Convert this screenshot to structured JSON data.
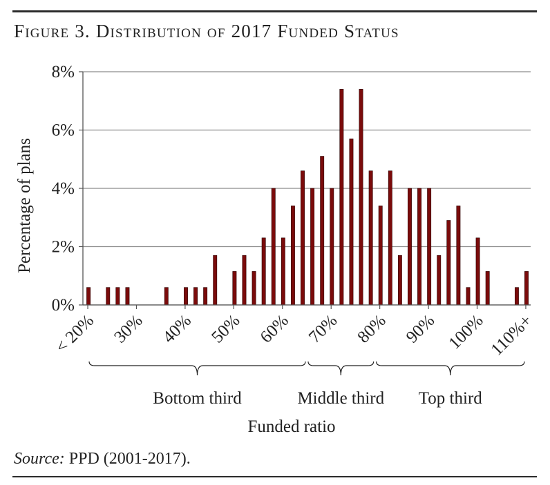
{
  "figure": {
    "title": "Figure 3. Distribution of 2017 Funded Status",
    "source_label": "Source:",
    "source_text": " PPD (2001-2017)."
  },
  "colors": {
    "bar_fill": "#7a0b0b",
    "bar_stroke": "#2a0000",
    "grid": "#8c8c8c"
  },
  "chart_data": {
    "type": "bar",
    "title": "",
    "xlabel": "Funded ratio",
    "ylabel": "Percentage of plans",
    "ylim": [
      0,
      8
    ],
    "y_ticks": [
      "0%",
      "2%",
      "4%",
      "6%",
      "8%"
    ],
    "y_tick_values": [
      0,
      2,
      4,
      6,
      8
    ],
    "grid": "horizontal",
    "x_tick_labels": [
      "< 20%",
      "30%",
      "40%",
      "50%",
      "60%",
      "70%",
      "80%",
      "90%",
      "100%",
      "110%+"
    ],
    "x_tick_values": [
      20,
      30,
      40,
      50,
      60,
      70,
      80,
      90,
      100,
      110
    ],
    "bins": [
      20,
      22,
      24,
      26,
      28,
      30,
      32,
      34,
      36,
      38,
      40,
      42,
      44,
      46,
      48,
      50,
      52,
      54,
      56,
      58,
      60,
      62,
      64,
      66,
      68,
      70,
      72,
      74,
      76,
      78,
      80,
      82,
      84,
      86,
      88,
      90,
      92,
      94,
      96,
      98,
      100,
      102,
      104,
      106,
      108,
      110
    ],
    "values": [
      0.6,
      0,
      0.6,
      0.6,
      0.6,
      0,
      0,
      0,
      0.6,
      0,
      0.6,
      0.6,
      0.6,
      1.7,
      0,
      1.15,
      1.7,
      1.15,
      2.3,
      4.0,
      2.3,
      3.4,
      4.6,
      4.0,
      5.1,
      4.0,
      7.4,
      5.7,
      7.4,
      4.6,
      3.4,
      4.6,
      1.7,
      4.0,
      4.0,
      4.0,
      1.7,
      2.9,
      3.4,
      0.6,
      2.3,
      1.15,
      0,
      0,
      0.6,
      1.15
    ],
    "groups": [
      {
        "label": "Bottom third",
        "from": 20,
        "to": 65
      },
      {
        "label": "Middle third",
        "from": 65,
        "to": 79
      },
      {
        "label": "Top third",
        "from": 79,
        "to": 110
      }
    ]
  }
}
